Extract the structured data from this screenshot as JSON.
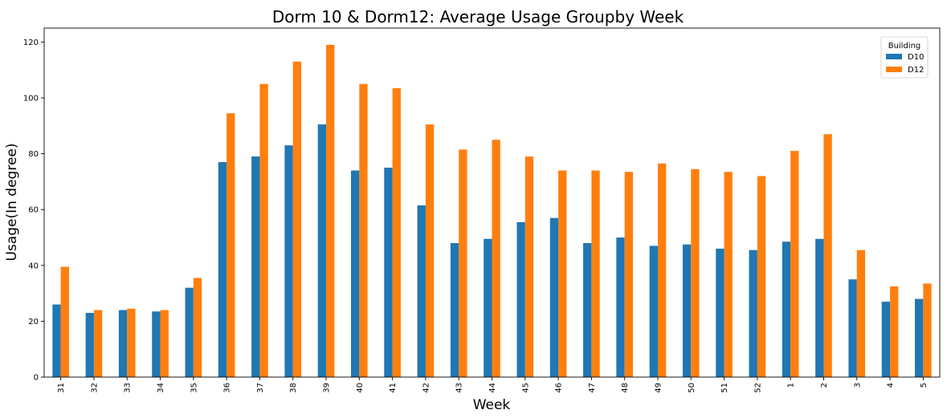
{
  "chart_data": {
    "type": "bar",
    "title": "Dorm 10 & Dorm12: Average Usage Groupby Week",
    "xlabel": "Week",
    "ylabel": "Usage(In degree)",
    "ylim": [
      0,
      125
    ],
    "yticks": [
      0,
      20,
      40,
      60,
      80,
      100,
      120
    ],
    "grid": false,
    "legend": {
      "title": "Building",
      "placement": "top-right"
    },
    "categories": [
      "31",
      "32",
      "33",
      "34",
      "35",
      "36",
      "37",
      "38",
      "39",
      "40",
      "41",
      "42",
      "43",
      "44",
      "45",
      "46",
      "47",
      "48",
      "49",
      "50",
      "51",
      "52",
      "1",
      "2",
      "3",
      "4",
      "5"
    ],
    "series": [
      {
        "name": "D10",
        "color": "#1f77b4",
        "values": [
          26,
          23,
          24,
          23.5,
          32,
          77,
          79,
          83,
          90.5,
          74,
          75,
          61.5,
          48,
          49.5,
          55.5,
          57,
          48,
          50,
          47,
          47.5,
          46,
          45.5,
          48.5,
          49.5,
          35,
          27,
          28
        ]
      },
      {
        "name": "D12",
        "color": "#ff7f0e",
        "values": [
          39.5,
          24,
          24.5,
          24,
          35.5,
          94.5,
          105,
          113,
          119,
          105,
          103.5,
          90.5,
          81.5,
          85,
          79,
          74,
          74,
          73.5,
          76.5,
          74.5,
          73.5,
          72,
          81,
          87,
          45.5,
          32.5,
          33.5
        ]
      }
    ]
  }
}
